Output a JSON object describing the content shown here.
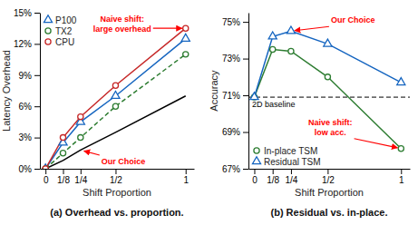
{
  "chart_data": [
    {
      "type": "line",
      "x": [
        0,
        0.125,
        0.25,
        0.5,
        1
      ],
      "series": [
        {
          "color": "#000000",
          "line_style": "solid",
          "marker": "none",
          "values": [
            0,
            0.8,
            1.8,
            3.5,
            7.0
          ]
        },
        {
          "name": "P100",
          "color": "#1565c0",
          "line_style": "solid",
          "marker": "triangle",
          "values": [
            0,
            2.5,
            4.5,
            7.0,
            12.5
          ]
        },
        {
          "name": "TX2",
          "color": "#2e7d32",
          "line_style": "dashed",
          "marker": "circle",
          "values": [
            0,
            1.5,
            3.0,
            6.0,
            11.0
          ]
        },
        {
          "name": "CPU",
          "color": "#c62828",
          "line_style": "solid",
          "marker": "circle",
          "values": [
            0,
            3.0,
            5.0,
            8.0,
            13.5
          ]
        }
      ],
      "xlim": [
        -0.04,
        1.06
      ],
      "xticks": [
        0,
        {
          "value": 0.125,
          "label": "1/8"
        },
        {
          "value": 0.25,
          "label": "1/4"
        },
        {
          "value": 0.5,
          "label": "1/2"
        },
        1
      ],
      "ylim": [
        0,
        15
      ],
      "yticks": [
        {
          "value": 0,
          "label": "0%"
        },
        {
          "value": 3,
          "label": "3%"
        },
        {
          "value": 6,
          "label": "6%"
        },
        {
          "value": 9,
          "label": "9%"
        },
        {
          "value": 12,
          "label": "12%"
        },
        {
          "value": 15,
          "label": "15%"
        }
      ],
      "xlabel": "Shift Proportion",
      "ylabel": "Latency Overhead",
      "caption": "(a) Overhead vs. proportion.",
      "legend": "upper left",
      "grid": false,
      "annotations": [
        {
          "text": "Naive shift:\nlarge overhead",
          "x": 1,
          "y": 13.5,
          "color": "red"
        },
        {
          "text": "Our Choice",
          "x": 0.25,
          "y": 1.8,
          "color": "red"
        }
      ]
    },
    {
      "type": "line",
      "x": [
        0,
        0.125,
        0.25,
        0.5,
        1
      ],
      "series": [
        {
          "name": "In-place TSM",
          "color": "#2e7d32",
          "line_style": "solid",
          "marker": "circle",
          "values": [
            70.9,
            73.5,
            73.4,
            72.0,
            68.1
          ]
        },
        {
          "name": "Residual TSM",
          "color": "#1565c0",
          "line_style": "solid",
          "marker": "triangle",
          "values": [
            70.9,
            74.2,
            74.5,
            73.8,
            71.7
          ]
        }
      ],
      "baseline": {
        "value": 70.9,
        "label": "2D baseline",
        "line_style": "dashed",
        "color": "#000000"
      },
      "xlim": [
        -0.04,
        1.06
      ],
      "xticks": [
        0,
        {
          "value": 0.125,
          "label": "1/8"
        },
        {
          "value": 0.25,
          "label": "1/4"
        },
        {
          "value": 0.5,
          "label": "1/2"
        },
        1
      ],
      "ylim": [
        67,
        75.5
      ],
      "yticks": [
        {
          "value": 67,
          "label": "67%"
        },
        {
          "value": 69,
          "label": "69%"
        },
        {
          "value": 71,
          "label": "71%"
        },
        {
          "value": 73,
          "label": "73%"
        },
        {
          "value": 75,
          "label": "75%"
        }
      ],
      "xlabel": "Shift Proportion",
      "ylabel": "Accuracy",
      "caption": "(b) Residual vs. in-place.",
      "legend": "lower left",
      "grid": false,
      "annotations": [
        {
          "text": "Our Choice",
          "x": 0.25,
          "y": 74.5,
          "color": "red"
        },
        {
          "text": "Naive shift:\nlow acc.",
          "x": 1,
          "y": 68.1,
          "color": "red"
        }
      ]
    }
  ]
}
